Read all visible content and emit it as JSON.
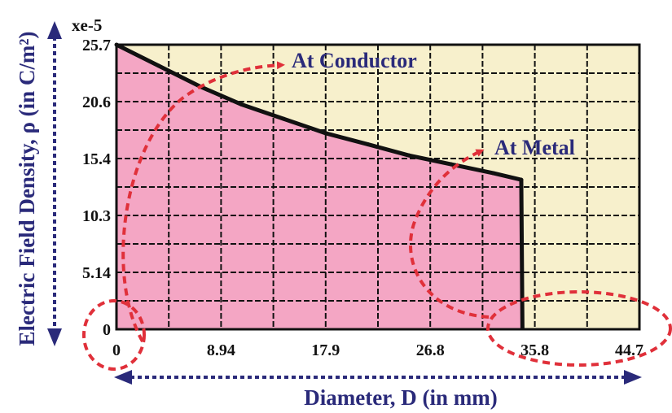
{
  "chart_data": {
    "type": "area",
    "title": "",
    "xlabel": "Diameter, D (in mm)",
    "ylabel": "Electric Field Density, ρ (in C/m²)",
    "y_scale_label": "xe-5",
    "x_ticks": [
      "0",
      "8.94",
      "17.9",
      "26.8",
      "35.8",
      "44.7"
    ],
    "y_ticks": [
      "0",
      "5.14",
      "10.3",
      "15.4",
      "20.6",
      "25.7"
    ],
    "xlim": [
      0,
      44.7
    ],
    "ylim": [
      0,
      25.7
    ],
    "grid": true,
    "series": [
      {
        "x": [
          0,
          3.6,
          7.2,
          10.7,
          14.3,
          17.9,
          21.5,
          25.0,
          28.6,
          32.2,
          34.6,
          34.7
        ],
        "y": [
          25.7,
          23.8,
          21.9,
          20.3,
          19.0,
          17.7,
          16.7,
          15.7,
          14.9,
          14.1,
          13.5,
          0
        ]
      }
    ],
    "annotations": [
      "At Conductor",
      "At Metal"
    ],
    "colors": {
      "fill_under_curve": "#f4a6c4",
      "background": "#f7f0cc",
      "curve": "#111111",
      "highlight": "#e0303a",
      "axis_arrow": "#2a2a7a"
    }
  }
}
